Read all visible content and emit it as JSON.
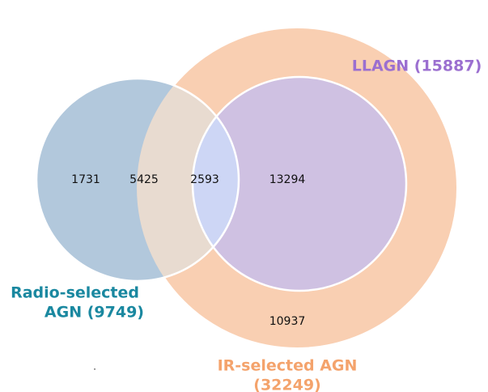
{
  "sets": {
    "llagn": {
      "label": "LLAGN (15887)"
    },
    "radio": {
      "label": [
        "Radio-selected",
        "AGN (9749)"
      ]
    },
    "ir": {
      "label": [
        "IR-selected AGN",
        "(32249)"
      ]
    }
  },
  "regions": {
    "radio_only": "1731",
    "radio_ir": "5425",
    "radio_llagn": "2593",
    "llagn_only": "13294",
    "ir_only": "10937"
  },
  "footnote": "."
}
